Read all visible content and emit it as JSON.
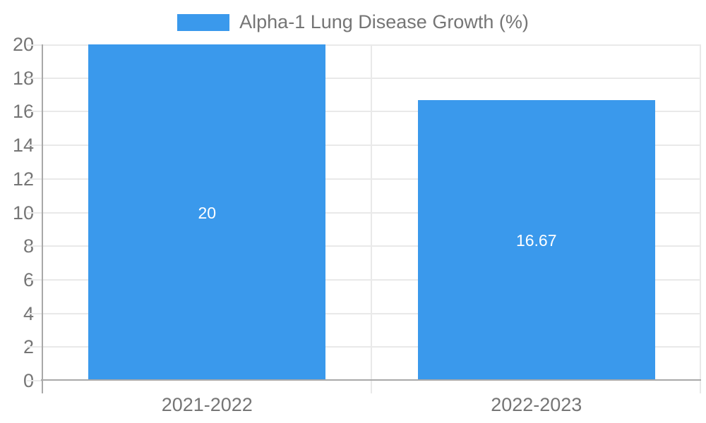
{
  "chart_data": {
    "type": "bar",
    "title": "",
    "series_name": "Alpha-1 Lung Disease Growth (%)",
    "categories": [
      "2021-2022",
      "2022-2023"
    ],
    "values": [
      20,
      16.67
    ],
    "bar_labels": [
      "20",
      "16.67"
    ],
    "xlabel": "",
    "ylabel": "",
    "ylim": [
      0,
      20
    ],
    "yticks": [
      0,
      2,
      4,
      6,
      8,
      10,
      12,
      14,
      16,
      18,
      20
    ],
    "grid": true,
    "legend_position": "top-center",
    "bar_width_fraction": 0.72,
    "colors": {
      "bar": "#3A99EC",
      "bar_label_text": "#FFFFFF",
      "axis_text": "#757575",
      "gridline": "#E9E9E9",
      "axis_line": "#A9A9A9",
      "background": "#FFFFFF"
    }
  }
}
